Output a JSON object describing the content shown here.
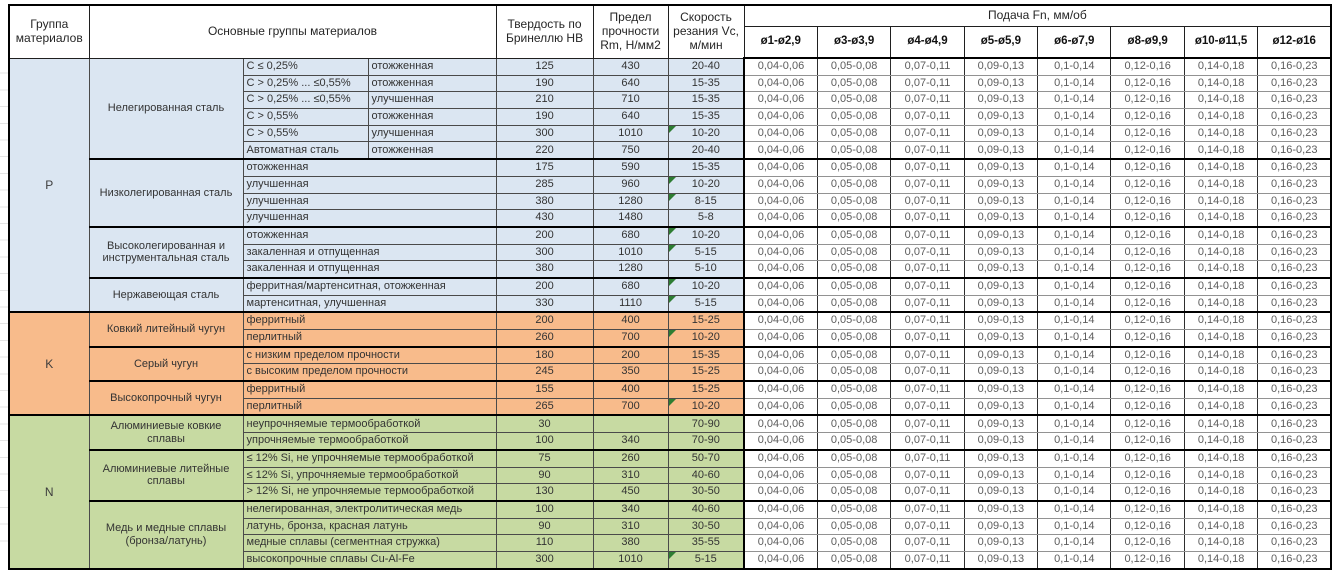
{
  "colors": {
    "blue": "#dbe6f2",
    "orange": "#f8bb8b",
    "green": "#c7daa2",
    "flag": "#2e7d32"
  },
  "header": {
    "group": "Группа материалов",
    "main": "Основные группы материалов",
    "hardness": "Твердость по Бринеллю HB",
    "strength": "Предел прочности Rm, Н/мм2",
    "speed": "Скорость резания Vc, м/мин",
    "feed": "Подача Fn, мм/об",
    "feed_cols": [
      "ø1-ø2,9",
      "ø3-ø3,9",
      "ø4-ø4,9",
      "ø5-ø5,9",
      "ø6-ø7,9",
      "ø8-ø9,9",
      "ø10-ø11,5",
      "ø12-ø16"
    ]
  },
  "feed_values": [
    "0,04-0,06",
    "0,05-0,08",
    "0,07-0,11",
    "0,09-0,13",
    "0,1-0,14",
    "0,12-0,16",
    "0,14-0,18",
    "0,16-0,23"
  ],
  "groups": [
    {
      "letter": "P",
      "color_key": "blue",
      "subgroups": [
        {
          "name": "Нелегированная сталь",
          "rows": [
            {
              "a": "C ≤ 0,25%",
              "b": "отожженная",
              "hb": "125",
              "rm": "430",
              "vc": "20-40",
              "flag": false
            },
            {
              "a": "C > 0,25% ... ≤0,55%",
              "b": "отожженная",
              "hb": "190",
              "rm": "640",
              "vc": "15-35",
              "flag": false
            },
            {
              "a": "C > 0,25% ... ≤0,55%",
              "b": "улучшенная",
              "hb": "210",
              "rm": "710",
              "vc": "15-35",
              "flag": false
            },
            {
              "a": "C > 0,55%",
              "b": "отожженная",
              "hb": "190",
              "rm": "640",
              "vc": "15-35",
              "flag": false
            },
            {
              "a": "C > 0,55%",
              "b": "улучшенная",
              "hb": "300",
              "rm": "1010",
              "vc": "10-20",
              "flag": true
            },
            {
              "a": "Автоматная сталь",
              "b": "отожженная",
              "hb": "220",
              "rm": "750",
              "vc": "20-40",
              "flag": false
            }
          ]
        },
        {
          "name": "Низколегированная сталь",
          "rows": [
            {
              "a": "отожженная",
              "hb": "175",
              "rm": "590",
              "vc": "15-35",
              "flag": false
            },
            {
              "a": "улучшенная",
              "hb": "285",
              "rm": "960",
              "vc": "10-20",
              "flag": true
            },
            {
              "a": "улучшенная",
              "hb": "380",
              "rm": "1280",
              "vc": "8-15",
              "flag": true
            },
            {
              "a": "улучшенная",
              "hb": "430",
              "rm": "1480",
              "vc": "5-8",
              "flag": false
            }
          ]
        },
        {
          "name": "Высоколегированная и инструментальная сталь",
          "rows": [
            {
              "a": "отожженная",
              "hb": "200",
              "rm": "680",
              "vc": "10-20",
              "flag": true
            },
            {
              "a": "закаленная и отпущенная",
              "hb": "300",
              "rm": "1010",
              "vc": "5-15",
              "flag": true
            },
            {
              "a": "закаленная и отпущенная",
              "hb": "380",
              "rm": "1280",
              "vc": "5-10",
              "flag": false
            }
          ]
        },
        {
          "name": "Нержавеющая сталь",
          "rows": [
            {
              "a": "ферритная/мартенситная, отожженная",
              "hb": "200",
              "rm": "680",
              "vc": "10-20",
              "flag": true
            },
            {
              "a": "мартенситная, улучшенная",
              "hb": "330",
              "rm": "1110",
              "vc": "5-15",
              "flag": true
            }
          ]
        }
      ]
    },
    {
      "letter": "K",
      "color_key": "orange",
      "subgroups": [
        {
          "name": "Ковкий литейный чугун",
          "rows": [
            {
              "a": "ферритный",
              "hb": "200",
              "rm": "400",
              "vc": "15-25",
              "flag": false
            },
            {
              "a": "перлитный",
              "hb": "260",
              "rm": "700",
              "vc": "10-20",
              "flag": true
            }
          ]
        },
        {
          "name": "Серый чугун",
          "rows": [
            {
              "a": "с низким пределом прочности",
              "hb": "180",
              "rm": "200",
              "vc": "15-35",
              "flag": false
            },
            {
              "a": "с высоким пределом прочности",
              "hb": "245",
              "rm": "350",
              "vc": "15-25",
              "flag": false
            }
          ]
        },
        {
          "name": "Высокопрочный чугун",
          "rows": [
            {
              "a": "ферритный",
              "hb": "155",
              "rm": "400",
              "vc": "15-25",
              "flag": false
            },
            {
              "a": "перлитный",
              "hb": "265",
              "rm": "700",
              "vc": "10-20",
              "flag": true
            }
          ]
        }
      ]
    },
    {
      "letter": "N",
      "color_key": "green",
      "subgroups": [
        {
          "name": "Алюминиевые ковкие сплавы",
          "rows": [
            {
              "a": "неупрочняемые термообработкой",
              "hb": "30",
              "rm": "",
              "vc": "70-90",
              "flag": false
            },
            {
              "a": "упрочняемые термообработкой",
              "hb": "100",
              "rm": "340",
              "vc": "70-90",
              "flag": false
            }
          ]
        },
        {
          "name": "Алюминиевые литейные сплавы",
          "rows": [
            {
              "a": "≤ 12% Si, не упрочняемые термообработкой",
              "hb": "75",
              "rm": "260",
              "vc": "50-70",
              "flag": false
            },
            {
              "a": "≤ 12% Si, упрочняемые термообработкой",
              "hb": "90",
              "rm": "310",
              "vc": "40-60",
              "flag": false
            },
            {
              "a": "> 12% Si, не упрочняемые термообработкой",
              "hb": "130",
              "rm": "450",
              "vc": "30-50",
              "flag": false
            }
          ]
        },
        {
          "name": "Медь и медные сплавы (бронза/латунь)",
          "rows": [
            {
              "a": "нелегированная, электролитическая медь",
              "hb": "100",
              "rm": "340",
              "vc": "40-60",
              "flag": false
            },
            {
              "a": "латунь, бронза, красная латунь",
              "hb": "90",
              "rm": "310",
              "vc": "30-50",
              "flag": false
            },
            {
              "a": "медные сплавы (сегментная стружка)",
              "hb": "110",
              "rm": "380",
              "vc": "35-55",
              "flag": false
            },
            {
              "a": "высокопрочные сплавы Cu-Al-Fe",
              "hb": "300",
              "rm": "1010",
              "vc": "5-15",
              "flag": true
            }
          ]
        }
      ]
    }
  ]
}
